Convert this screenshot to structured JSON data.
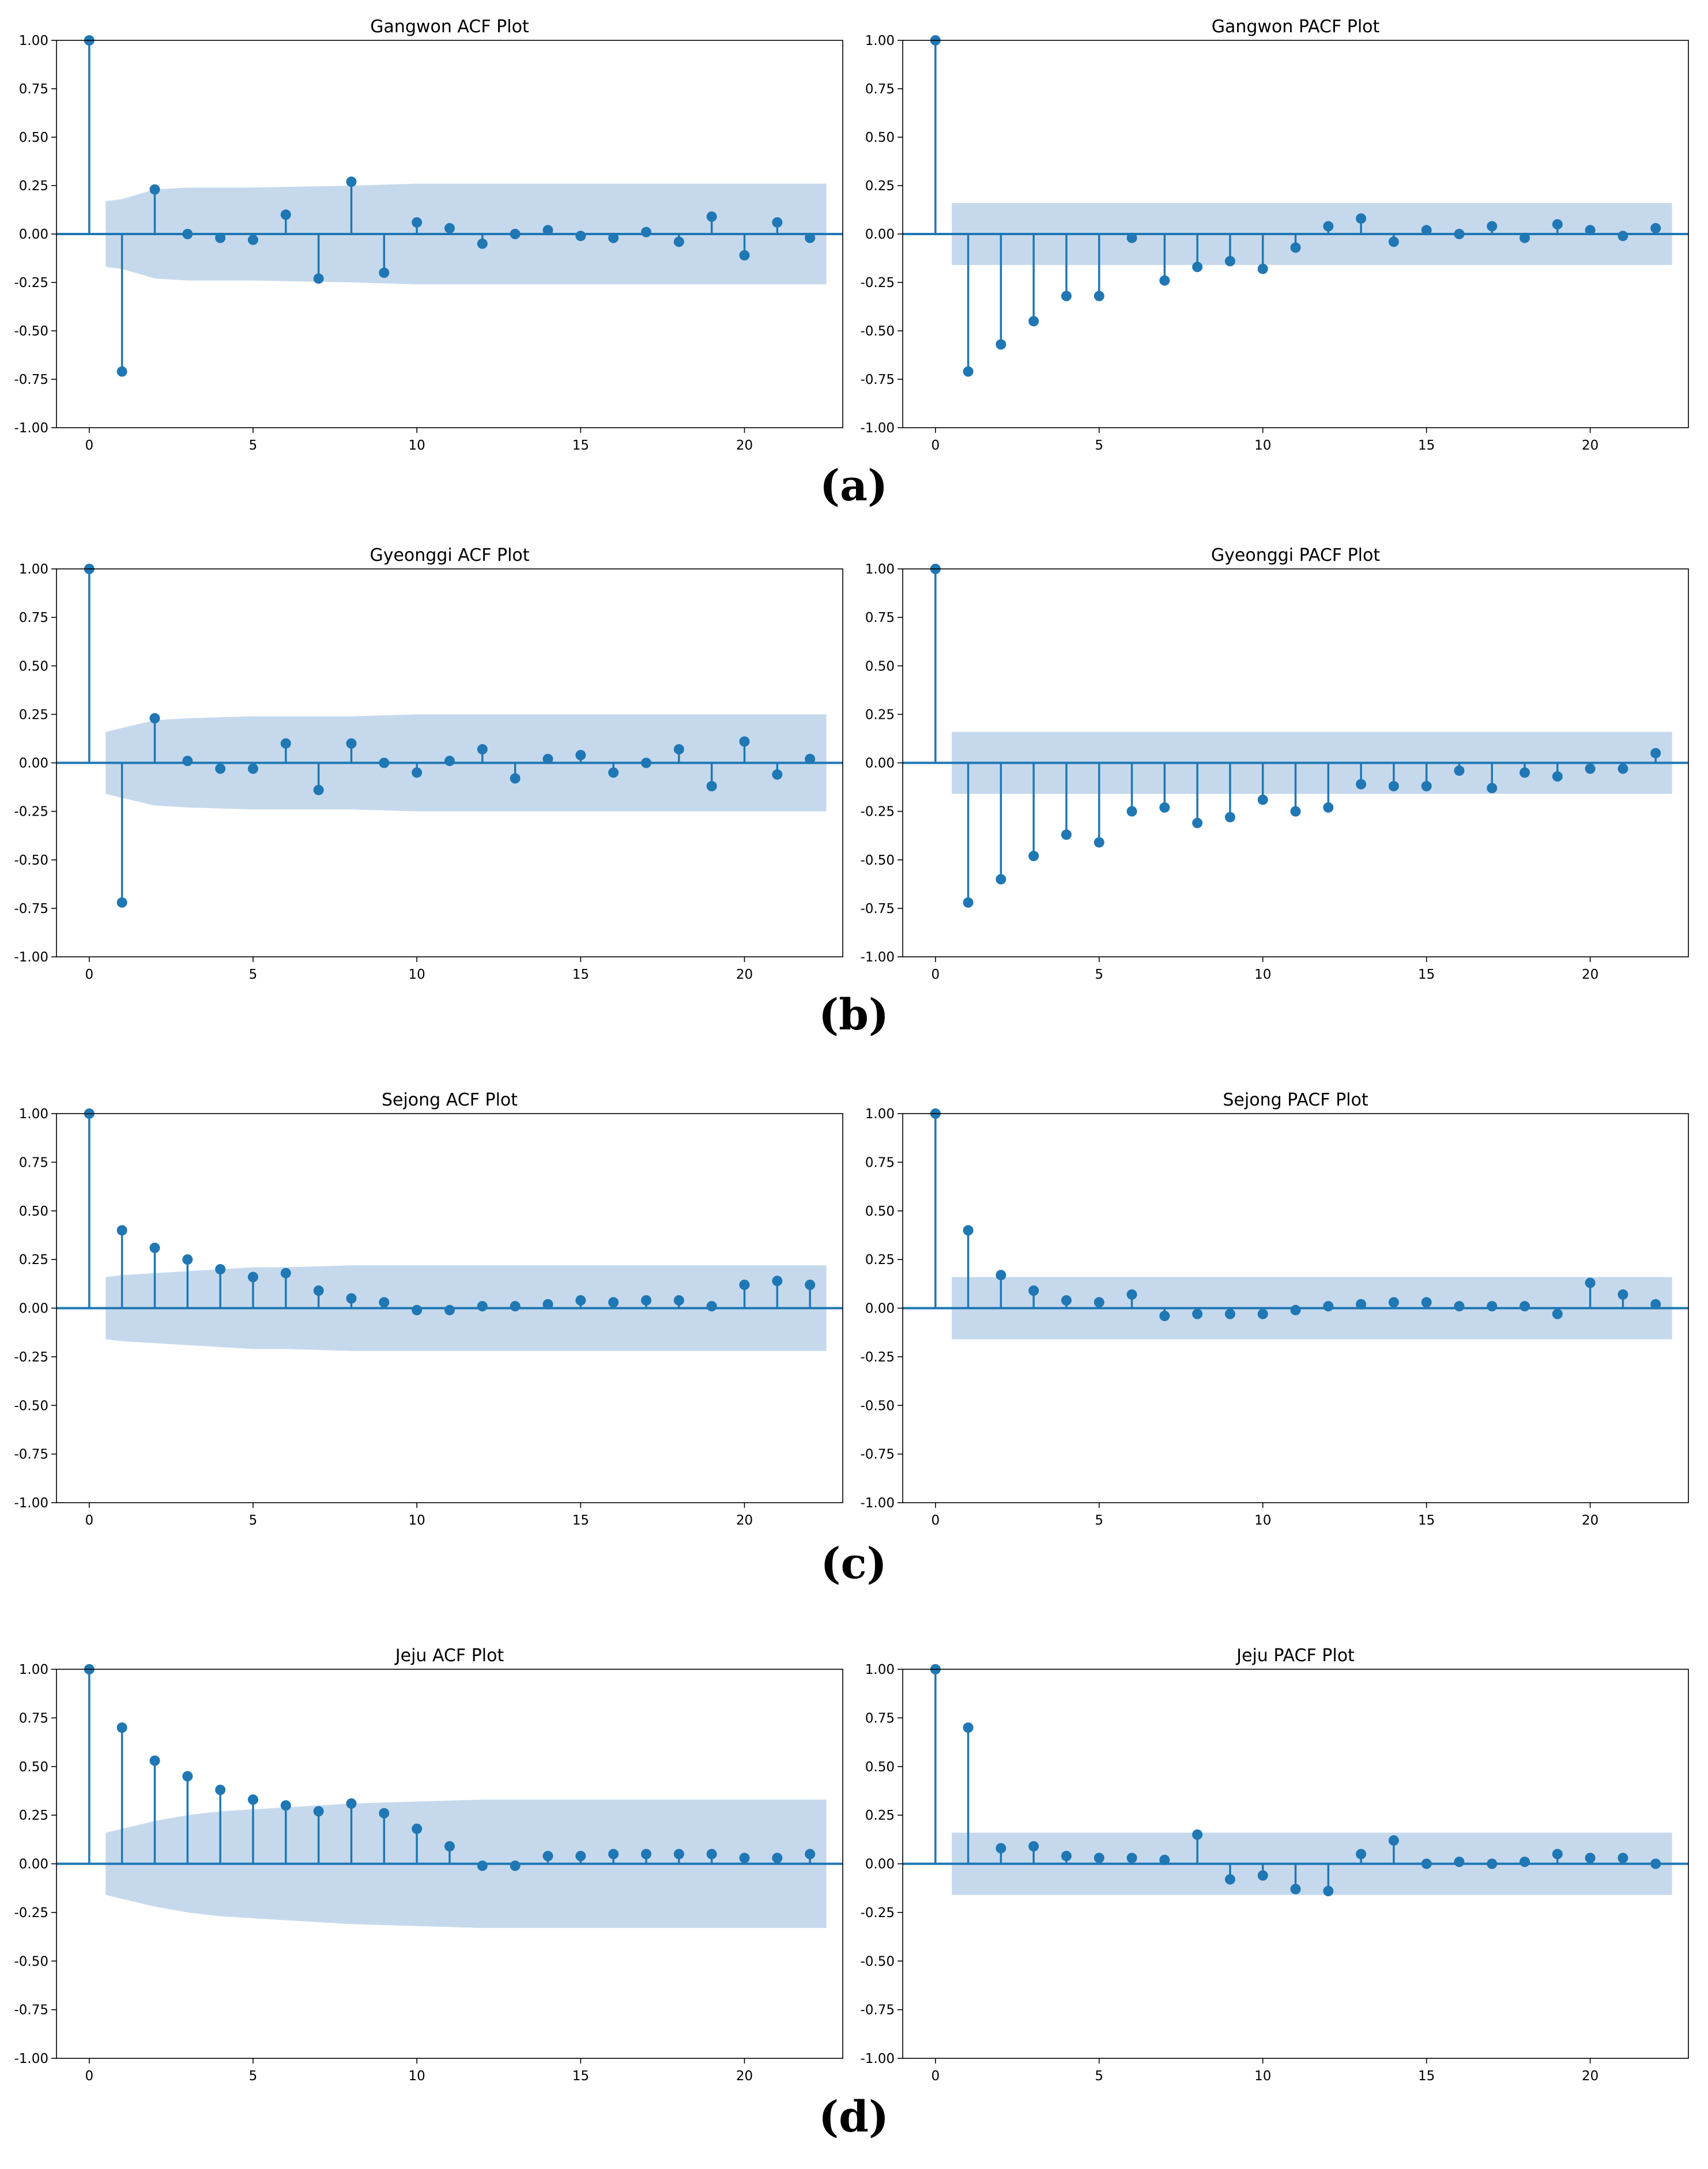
{
  "panel_labels": [
    "(a)",
    "(b)",
    "(c)",
    "(d)"
  ],
  "colors": {
    "series": "#1f77b4",
    "confidence_band": "#c6d9ec",
    "axes": "#000000"
  },
  "chart_data": [
    {
      "type": "stem",
      "title": "Gangwon ACF Plot",
      "panel": "(a)",
      "xlim": [
        -1,
        23
      ],
      "ylim": [
        -1,
        1
      ],
      "xticks": [
        0,
        5,
        10,
        15,
        20
      ],
      "yticks": [
        1.0,
        0.75,
        0.5,
        0.25,
        0.0,
        -0.25,
        -0.5,
        -0.75,
        -1.0
      ],
      "ytick_labels": [
        "1.00",
        "0.75",
        "0.50",
        "0.25",
        "0.00",
        "-0.25",
        "-0.50",
        "-0.75",
        "-1.00"
      ],
      "x": [
        0,
        1,
        2,
        3,
        4,
        5,
        6,
        7,
        8,
        9,
        10,
        11,
        12,
        13,
        14,
        15,
        16,
        17,
        18,
        19,
        20,
        21,
        22
      ],
      "values": [
        1.0,
        -0.71,
        0.23,
        0.0,
        -0.02,
        -0.03,
        0.1,
        -0.23,
        0.27,
        -0.2,
        0.06,
        0.03,
        -0.05,
        0.0,
        0.02,
        -0.01,
        -0.02,
        0.01,
        -0.04,
        0.09,
        -0.11,
        0.06,
        -0.02
      ],
      "confidence_band": {
        "x": [
          0.5,
          1,
          2,
          3,
          5,
          8,
          10,
          15,
          22.5
        ],
        "upper": [
          0.17,
          0.18,
          0.23,
          0.24,
          0.24,
          0.25,
          0.26,
          0.26,
          0.26
        ]
      }
    },
    {
      "type": "stem",
      "title": "Gangwon PACF Plot",
      "panel": "(a)",
      "xlim": [
        -1,
        23
      ],
      "ylim": [
        -1,
        1
      ],
      "xticks": [
        0,
        5,
        10,
        15,
        20
      ],
      "yticks": [
        1.0,
        0.75,
        0.5,
        0.25,
        0.0,
        -0.25,
        -0.5,
        -0.75,
        -1.0
      ],
      "ytick_labels": [
        "1.00",
        "0.75",
        "0.50",
        "0.25",
        "0.00",
        "-0.25",
        "-0.50",
        "-0.75",
        "-1.00"
      ],
      "x": [
        0,
        1,
        2,
        3,
        4,
        5,
        6,
        7,
        8,
        9,
        10,
        11,
        12,
        13,
        14,
        15,
        16,
        17,
        18,
        19,
        20,
        21,
        22
      ],
      "values": [
        1.0,
        -0.71,
        -0.57,
        -0.45,
        -0.32,
        -0.32,
        -0.02,
        -0.24,
        -0.17,
        -0.14,
        -0.18,
        -0.07,
        0.04,
        0.08,
        -0.04,
        0.02,
        0.0,
        0.04,
        -0.02,
        0.05,
        0.02,
        -0.01,
        0.03
      ],
      "confidence_band": {
        "x": [
          0.5,
          22.5
        ],
        "upper": [
          0.16,
          0.16
        ]
      }
    },
    {
      "type": "stem",
      "title": "Gyeonggi ACF Plot",
      "panel": "(b)",
      "xlim": [
        -1,
        23
      ],
      "ylim": [
        -1,
        1
      ],
      "xticks": [
        0,
        5,
        10,
        15,
        20
      ],
      "yticks": [
        1.0,
        0.75,
        0.5,
        0.25,
        0.0,
        -0.25,
        -0.5,
        -0.75,
        -1.0
      ],
      "ytick_labels": [
        "1.00",
        "0.75",
        "0.50",
        "0.25",
        "0.00",
        "-0.25",
        "-0.50",
        "-0.75",
        "-1.00"
      ],
      "x": [
        0,
        1,
        2,
        3,
        4,
        5,
        6,
        7,
        8,
        9,
        10,
        11,
        12,
        13,
        14,
        15,
        16,
        17,
        18,
        19,
        20,
        21,
        22
      ],
      "values": [
        1.0,
        -0.72,
        0.23,
        0.01,
        -0.03,
        -0.03,
        0.1,
        -0.14,
        0.1,
        0.0,
        -0.05,
        0.01,
        0.07,
        -0.08,
        0.02,
        0.04,
        -0.05,
        0.0,
        0.07,
        -0.12,
        0.11,
        -0.06,
        0.02
      ],
      "confidence_band": {
        "x": [
          0.5,
          1,
          2,
          3,
          5,
          8,
          10,
          15,
          22.5
        ],
        "upper": [
          0.16,
          0.18,
          0.22,
          0.23,
          0.24,
          0.24,
          0.25,
          0.25,
          0.25
        ]
      }
    },
    {
      "type": "stem",
      "title": "Gyeonggi PACF Plot",
      "panel": "(b)",
      "xlim": [
        -1,
        23
      ],
      "ylim": [
        -1,
        1
      ],
      "xticks": [
        0,
        5,
        10,
        15,
        20
      ],
      "yticks": [
        1.0,
        0.75,
        0.5,
        0.25,
        0.0,
        -0.25,
        -0.5,
        -0.75,
        -1.0
      ],
      "ytick_labels": [
        "1.00",
        "0.75",
        "0.50",
        "0.25",
        "0.00",
        "-0.25",
        "-0.50",
        "-0.75",
        "-1.00"
      ],
      "x": [
        0,
        1,
        2,
        3,
        4,
        5,
        6,
        7,
        8,
        9,
        10,
        11,
        12,
        13,
        14,
        15,
        16,
        17,
        18,
        19,
        20,
        21,
        22
      ],
      "values": [
        1.0,
        -0.72,
        -0.6,
        -0.48,
        -0.37,
        -0.41,
        -0.25,
        -0.23,
        -0.31,
        -0.28,
        -0.19,
        -0.25,
        -0.23,
        -0.11,
        -0.12,
        -0.12,
        -0.04,
        -0.13,
        -0.05,
        -0.07,
        -0.03,
        -0.03,
        0.05
      ],
      "confidence_band": {
        "x": [
          0.5,
          22.5
        ],
        "upper": [
          0.16,
          0.16
        ]
      }
    },
    {
      "type": "stem",
      "title": "Sejong ACF Plot",
      "panel": "(c)",
      "xlim": [
        -1,
        23
      ],
      "ylim": [
        -1,
        1
      ],
      "xticks": [
        0,
        5,
        10,
        15,
        20
      ],
      "yticks": [
        1.0,
        0.75,
        0.5,
        0.25,
        0.0,
        -0.25,
        -0.5,
        -0.75,
        -1.0
      ],
      "ytick_labels": [
        "1.00",
        "0.75",
        "0.50",
        "0.25",
        "0.00",
        "-0.25",
        "-0.50",
        "-0.75",
        "-1.00"
      ],
      "x": [
        0,
        1,
        2,
        3,
        4,
        5,
        6,
        7,
        8,
        9,
        10,
        11,
        12,
        13,
        14,
        15,
        16,
        17,
        18,
        19,
        20,
        21,
        22
      ],
      "values": [
        1.0,
        0.4,
        0.31,
        0.25,
        0.2,
        0.16,
        0.18,
        0.09,
        0.05,
        0.03,
        -0.01,
        -0.01,
        0.01,
        0.01,
        0.02,
        0.04,
        0.03,
        0.04,
        0.04,
        0.01,
        0.12,
        0.14,
        0.12
      ],
      "confidence_band": {
        "x": [
          0.5,
          1,
          2,
          3,
          4,
          5,
          6,
          8,
          10,
          15,
          22.5
        ],
        "upper": [
          0.16,
          0.17,
          0.18,
          0.19,
          0.2,
          0.21,
          0.21,
          0.22,
          0.22,
          0.22,
          0.22
        ]
      }
    },
    {
      "type": "stem",
      "title": "Sejong PACF Plot",
      "panel": "(c)",
      "xlim": [
        -1,
        23
      ],
      "ylim": [
        -1,
        1
      ],
      "xticks": [
        0,
        5,
        10,
        15,
        20
      ],
      "yticks": [
        1.0,
        0.75,
        0.5,
        0.25,
        0.0,
        -0.25,
        -0.5,
        -0.75,
        -1.0
      ],
      "ytick_labels": [
        "1.00",
        "0.75",
        "0.50",
        "0.25",
        "0.00",
        "-0.25",
        "-0.50",
        "-0.75",
        "-1.00"
      ],
      "x": [
        0,
        1,
        2,
        3,
        4,
        5,
        6,
        7,
        8,
        9,
        10,
        11,
        12,
        13,
        14,
        15,
        16,
        17,
        18,
        19,
        20,
        21,
        22
      ],
      "values": [
        1.0,
        0.4,
        0.17,
        0.09,
        0.04,
        0.03,
        0.07,
        -0.04,
        -0.03,
        -0.03,
        -0.03,
        -0.01,
        0.01,
        0.02,
        0.03,
        0.03,
        0.01,
        0.01,
        0.01,
        -0.03,
        0.13,
        0.07,
        0.02
      ],
      "confidence_band": {
        "x": [
          0.5,
          22.5
        ],
        "upper": [
          0.16,
          0.16
        ]
      }
    },
    {
      "type": "stem",
      "title": "Jeju ACF Plot",
      "panel": "(d)",
      "xlim": [
        -1,
        23
      ],
      "ylim": [
        -1,
        1
      ],
      "xticks": [
        0,
        5,
        10,
        15,
        20
      ],
      "yticks": [
        1.0,
        0.75,
        0.5,
        0.25,
        0.0,
        -0.25,
        -0.5,
        -0.75,
        -1.0
      ],
      "ytick_labels": [
        "1.00",
        "0.75",
        "0.50",
        "0.25",
        "0.00",
        "-0.25",
        "-0.50",
        "-0.75",
        "-1.00"
      ],
      "x": [
        0,
        1,
        2,
        3,
        4,
        5,
        6,
        7,
        8,
        9,
        10,
        11,
        12,
        13,
        14,
        15,
        16,
        17,
        18,
        19,
        20,
        21,
        22
      ],
      "values": [
        1.0,
        0.7,
        0.53,
        0.45,
        0.38,
        0.33,
        0.3,
        0.27,
        0.31,
        0.26,
        0.18,
        0.09,
        -0.01,
        -0.01,
        0.04,
        0.04,
        0.05,
        0.05,
        0.05,
        0.05,
        0.03,
        0.03,
        0.05
      ],
      "confidence_band": {
        "x": [
          0.5,
          1,
          2,
          3,
          4,
          5,
          6,
          7,
          8,
          10,
          12,
          15,
          22.5
        ],
        "upper": [
          0.16,
          0.18,
          0.22,
          0.25,
          0.27,
          0.28,
          0.29,
          0.3,
          0.31,
          0.32,
          0.33,
          0.33,
          0.33
        ]
      }
    },
    {
      "type": "stem",
      "title": "Jeju PACF Plot",
      "panel": "(d)",
      "xlim": [
        -1,
        23
      ],
      "ylim": [
        -1,
        1
      ],
      "xticks": [
        0,
        5,
        10,
        15,
        20
      ],
      "yticks": [
        1.0,
        0.75,
        0.5,
        0.25,
        0.0,
        -0.25,
        -0.5,
        -0.75,
        -1.0
      ],
      "ytick_labels": [
        "1.00",
        "0.75",
        "0.50",
        "0.25",
        "0.00",
        "-0.25",
        "-0.50",
        "-0.75",
        "-1.00"
      ],
      "x": [
        0,
        1,
        2,
        3,
        4,
        5,
        6,
        7,
        8,
        9,
        10,
        11,
        12,
        13,
        14,
        15,
        16,
        17,
        18,
        19,
        20,
        21,
        22
      ],
      "values": [
        1.0,
        0.7,
        0.08,
        0.09,
        0.04,
        0.03,
        0.03,
        0.02,
        0.15,
        -0.08,
        -0.06,
        -0.13,
        -0.14,
        0.05,
        0.12,
        0.0,
        0.01,
        0.0,
        0.01,
        0.05,
        0.03,
        0.03,
        0.0
      ],
      "confidence_band": {
        "x": [
          0.5,
          22.5
        ],
        "upper": [
          0.16,
          0.16
        ]
      }
    }
  ]
}
